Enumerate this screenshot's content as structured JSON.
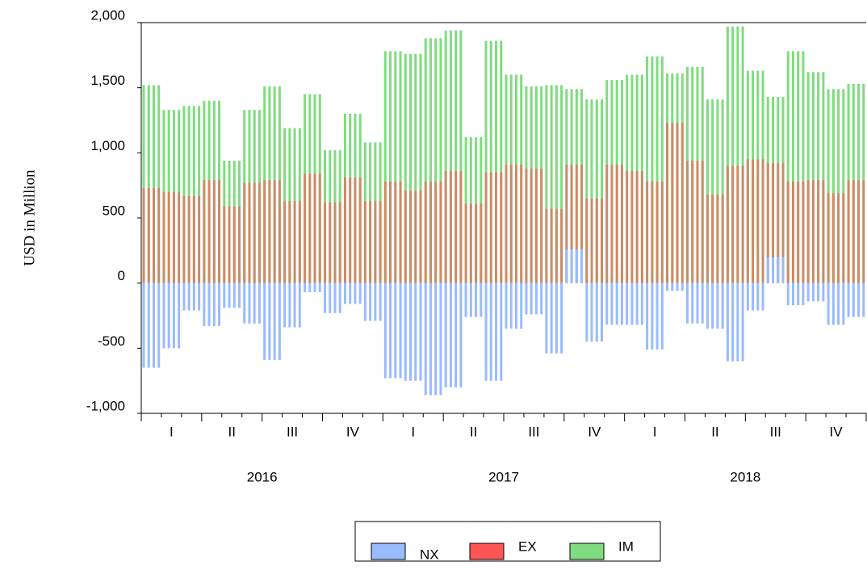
{
  "chart_data": {
    "type": "bar",
    "y_label": "USD in Million",
    "categories": [
      null,
      null,
      null,
      null,
      null,
      null,
      null,
      null,
      null,
      null,
      null,
      null,
      null,
      null,
      null,
      null,
      null,
      null,
      null,
      null,
      null,
      null,
      null,
      null,
      null,
      null,
      null,
      null,
      null,
      null,
      null,
      null,
      null,
      null,
      null,
      null
    ],
    "quarters": [
      "I",
      "II",
      "III",
      "IV",
      "I",
      "II",
      "III",
      "IV",
      "I",
      "II",
      "III",
      "IV"
    ],
    "years": [
      "2016",
      "2017",
      "2018"
    ],
    "ylim": [
      -1000,
      2000
    ],
    "yticks": [
      {
        "value": -1000,
        "label": "-1,000"
      },
      -500,
      0,
      500,
      {
        "value": 1000,
        "label": "1,000"
      },
      {
        "value": 1500,
        "label": "1,500"
      },
      {
        "value": 2000,
        "label": "2,000"
      }
    ],
    "series": [
      {
        "name": "NX",
        "color": "#99bbff",
        "values": [
          -650,
          -500,
          -210,
          -330,
          -190,
          -310,
          -590,
          -340,
          -70,
          -230,
          -160,
          -290,
          -730,
          -750,
          -860,
          -800,
          -260,
          -750,
          -350,
          -240,
          -540,
          260,
          -450,
          -320,
          -320,
          -510,
          -60,
          -310,
          -350,
          -600,
          -210,
          200,
          -170,
          -140,
          -320,
          -260
        ]
      },
      {
        "name": "EX",
        "color": "#ff5555",
        "values": [
          730,
          700,
          670,
          790,
          590,
          770,
          790,
          630,
          840,
          620,
          810,
          630,
          780,
          710,
          780,
          860,
          610,
          850,
          910,
          880,
          570,
          910,
          650,
          910,
          860,
          780,
          1230,
          940,
          680,
          900,
          950,
          920,
          780,
          790,
          690,
          790
        ]
      },
      {
        "name": "IM",
        "color": "#7fdc7f",
        "values": [
          1520,
          1330,
          1360,
          1400,
          940,
          1330,
          1510,
          1190,
          1450,
          1020,
          1300,
          1080,
          1780,
          1760,
          1880,
          1940,
          1120,
          1860,
          1600,
          1510,
          1520,
          1490,
          1410,
          1560,
          1600,
          1740,
          1610,
          1660,
          1410,
          1970,
          1630,
          1430,
          1780,
          1620,
          1490,
          1530
        ]
      }
    ]
  }
}
